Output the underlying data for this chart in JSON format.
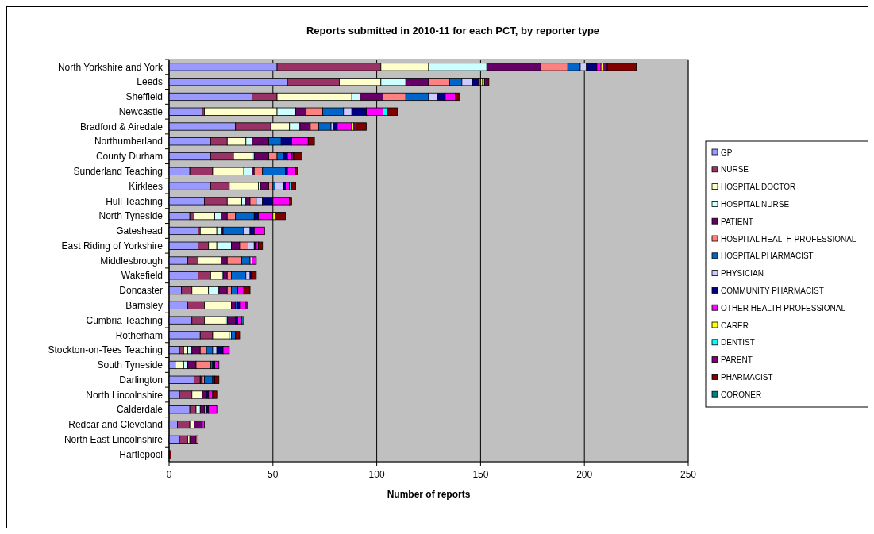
{
  "chart_data": {
    "type": "bar",
    "orientation": "horizontal",
    "stacked": true,
    "title": "Reports submitted in 2010-11 for each PCT, by reporter type",
    "xlabel": "Number of reports",
    "categories": [
      "North Yorkshire and York",
      "Leeds",
      "Sheffield",
      "Newcastle",
      "Bradford & Airedale",
      "Northumberland",
      "County Durham",
      "Sunderland Teaching",
      "Kirklees",
      "Hull Teaching",
      "North Tyneside",
      "Gateshead",
      "East Riding of Yorkshire",
      "Middlesbrough",
      "Wakefield",
      "Doncaster",
      "Barnsley",
      "Cumbria Teaching",
      "Rotherham",
      "Stockton-on-Tees Teaching",
      "South Tyneside",
      "Darlington",
      "North Lincolnshire",
      "Calderdale",
      "Redcar and Cleveland",
      "North East Lincolnshire",
      "Hartlepool"
    ],
    "xlim": [
      0,
      250
    ],
    "xticks": [
      0,
      50,
      100,
      150,
      200,
      250
    ],
    "grid": "x",
    "legend": "right",
    "series": [
      {
        "name": "GP",
        "color": "#9999ff",
        "values": [
          52,
          57,
          40,
          16,
          32,
          20,
          20,
          10,
          20,
          17,
          10,
          14,
          14,
          9,
          14,
          6,
          9,
          11,
          15,
          5,
          3,
          12,
          5,
          10,
          4,
          5,
          0
        ]
      },
      {
        "name": "NURSE",
        "color": "#993366",
        "values": [
          50,
          25,
          12,
          1,
          17,
          8,
          11,
          11,
          9,
          11,
          2,
          1,
          5,
          5,
          6,
          5,
          8,
          6,
          6,
          2,
          0,
          3,
          6,
          3,
          6,
          4,
          0
        ]
      },
      {
        "name": "HOSPITAL DOCTOR",
        "color": "#ffffcc",
        "values": [
          23,
          20,
          36,
          35,
          9,
          9,
          9,
          15,
          14,
          7,
          10,
          8,
          4,
          11,
          5,
          8,
          13,
          10,
          8,
          2,
          4,
          0,
          5,
          1,
          2,
          1,
          0
        ]
      },
      {
        "name": "HOSPITAL NURSE",
        "color": "#ccffff",
        "values": [
          28,
          12,
          4,
          9,
          5,
          3,
          1,
          4,
          1,
          2,
          3,
          2,
          7,
          0,
          1,
          5,
          0,
          1,
          1,
          2,
          2,
          0,
          0,
          1,
          0,
          0,
          0
        ]
      },
      {
        "name": "PATIENT",
        "color": "#660066",
        "values": [
          26,
          11,
          11,
          5,
          5,
          8,
          7,
          1,
          4,
          2,
          3,
          1,
          4,
          3,
          2,
          4,
          2,
          4,
          0,
          4,
          4,
          1,
          2,
          2,
          4,
          3,
          0
        ]
      },
      {
        "name": "HOSPITAL HEALTH PROFESSIONAL",
        "color": "#ff8080",
        "values": [
          13,
          10,
          11,
          8,
          4,
          0,
          4,
          4,
          2,
          3,
          4,
          0,
          4,
          7,
          2,
          2,
          0,
          0,
          0,
          3,
          7,
          1,
          0,
          1,
          0,
          1,
          0
        ]
      },
      {
        "name": "HOSPITAL PHARMACIST",
        "color": "#0066cc",
        "values": [
          6,
          6,
          11,
          10,
          6,
          6,
          3,
          11,
          1,
          0,
          9,
          10,
          0,
          4,
          7,
          3,
          1,
          0,
          2,
          3,
          1,
          4,
          0,
          0,
          0,
          0,
          0
        ]
      },
      {
        "name": "PHYSICIAN",
        "color": "#ccccff",
        "values": [
          3,
          5,
          4,
          4,
          1,
          0,
          0,
          0,
          4,
          3,
          0,
          3,
          3,
          1,
          2,
          0,
          0,
          0,
          0,
          2,
          0,
          0,
          0,
          0,
          0,
          0,
          0
        ]
      },
      {
        "name": "COMMUNITY PHARMACIST",
        "color": "#000080",
        "values": [
          5,
          3,
          4,
          7,
          2,
          5,
          2,
          1,
          1,
          5,
          2,
          2,
          1,
          0,
          1,
          0,
          1,
          1,
          0,
          3,
          1,
          0,
          1,
          1,
          0,
          0,
          0
        ]
      },
      {
        "name": "OTHER HEALTH PROFESSIONAL",
        "color": "#ff00ff",
        "values": [
          2,
          1,
          5,
          8,
          7,
          8,
          2,
          4,
          2,
          8,
          7,
          5,
          1,
          2,
          0,
          3,
          3,
          2,
          0,
          3,
          2,
          0,
          2,
          4,
          1,
          0,
          0
        ]
      },
      {
        "name": "CARER",
        "color": "#ffff00",
        "values": [
          1,
          1,
          0,
          0,
          1,
          0,
          0,
          0,
          0,
          0,
          1,
          0,
          0,
          0,
          0,
          0,
          0,
          0,
          0,
          0,
          0,
          0,
          0,
          0,
          0,
          0,
          0
        ]
      },
      {
        "name": "DENTIST",
        "color": "#00ffff",
        "values": [
          0,
          1,
          0,
          2,
          0,
          0,
          0,
          0,
          1,
          0,
          0,
          0,
          0,
          0,
          0,
          0,
          0,
          0,
          0,
          0,
          0,
          0,
          0,
          0,
          0,
          0,
          0
        ]
      },
      {
        "name": "PARENT",
        "color": "#800080",
        "values": [
          2,
          1,
          0,
          0,
          1,
          0,
          1,
          0,
          0,
          0,
          0,
          0,
          0,
          0,
          0,
          0,
          1,
          0,
          0,
          0,
          0,
          1,
          0,
          0,
          0,
          0,
          0
        ]
      },
      {
        "name": "PHARMACIST",
        "color": "#800000",
        "values": [
          14,
          1,
          2,
          5,
          5,
          3,
          4,
          1,
          2,
          1,
          5,
          0,
          2,
          0,
          2,
          3,
          0,
          0,
          2,
          0,
          0,
          2,
          2,
          0,
          0,
          0,
          1
        ]
      },
      {
        "name": "CORONER",
        "color": "#008080",
        "values": [
          0,
          0,
          0,
          0,
          0,
          0,
          0,
          0,
          0,
          0,
          0,
          0,
          0,
          0,
          0,
          0,
          0,
          1,
          0,
          0,
          0,
          0,
          0,
          0,
          0,
          0,
          0
        ]
      }
    ]
  }
}
